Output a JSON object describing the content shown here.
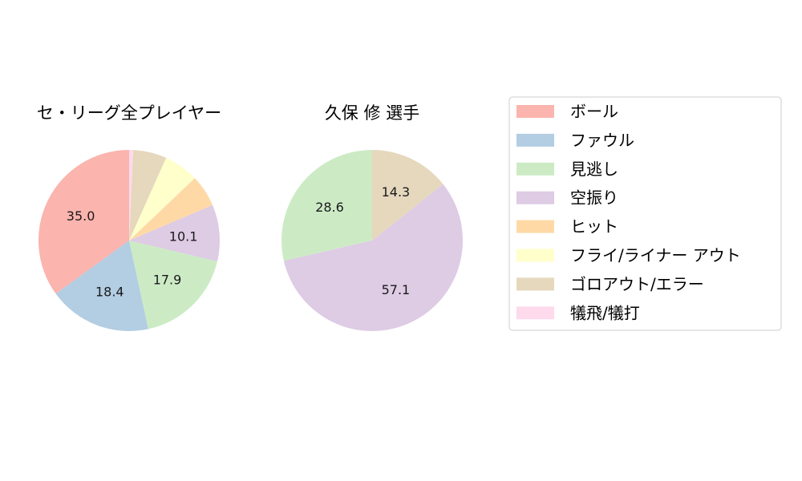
{
  "chart_data": [
    {
      "type": "pie",
      "title": "セ・リーグ全プレイヤー",
      "categories": [
        "ボール",
        "ファウル",
        "見逃し",
        "空振り",
        "ヒット",
        "フライ/ライナー アウト",
        "ゴロアウト/エラー",
        "犠飛/犠打"
      ],
      "values": [
        35.0,
        18.4,
        17.9,
        10.1,
        5.7,
        6.2,
        6.0,
        0.7
      ],
      "labels": [
        "35.0",
        "18.4",
        "17.9",
        "10.1",
        "",
        "",
        "",
        ""
      ]
    },
    {
      "type": "pie",
      "title": "久保 修  選手",
      "categories": [
        "ボール",
        "ファウル",
        "見逃し",
        "空振り",
        "ヒット",
        "フライ/ライナー アウト",
        "ゴロアウト/エラー",
        "犠飛/犠打"
      ],
      "values": [
        0,
        0,
        28.6,
        57.1,
        0,
        0,
        14.3,
        0
      ],
      "labels": [
        "",
        "",
        "28.6",
        "57.1",
        "",
        "",
        "14.3",
        ""
      ]
    }
  ],
  "legend": {
    "placement": "right",
    "items": [
      {
        "label": "ボール",
        "color": "#fbb4ae"
      },
      {
        "label": "ファウル",
        "color": "#b3cde3"
      },
      {
        "label": "見逃し",
        "color": "#ccebc5"
      },
      {
        "label": "空振り",
        "color": "#decbe4"
      },
      {
        "label": "ヒット",
        "color": "#fed9a6"
      },
      {
        "label": "フライ/ライナー アウト",
        "color": "#ffffcc"
      },
      {
        "label": "ゴロアウト/エラー",
        "color": "#e5d8bd"
      },
      {
        "label": "犠飛/犠打",
        "color": "#fddaec"
      }
    ]
  }
}
